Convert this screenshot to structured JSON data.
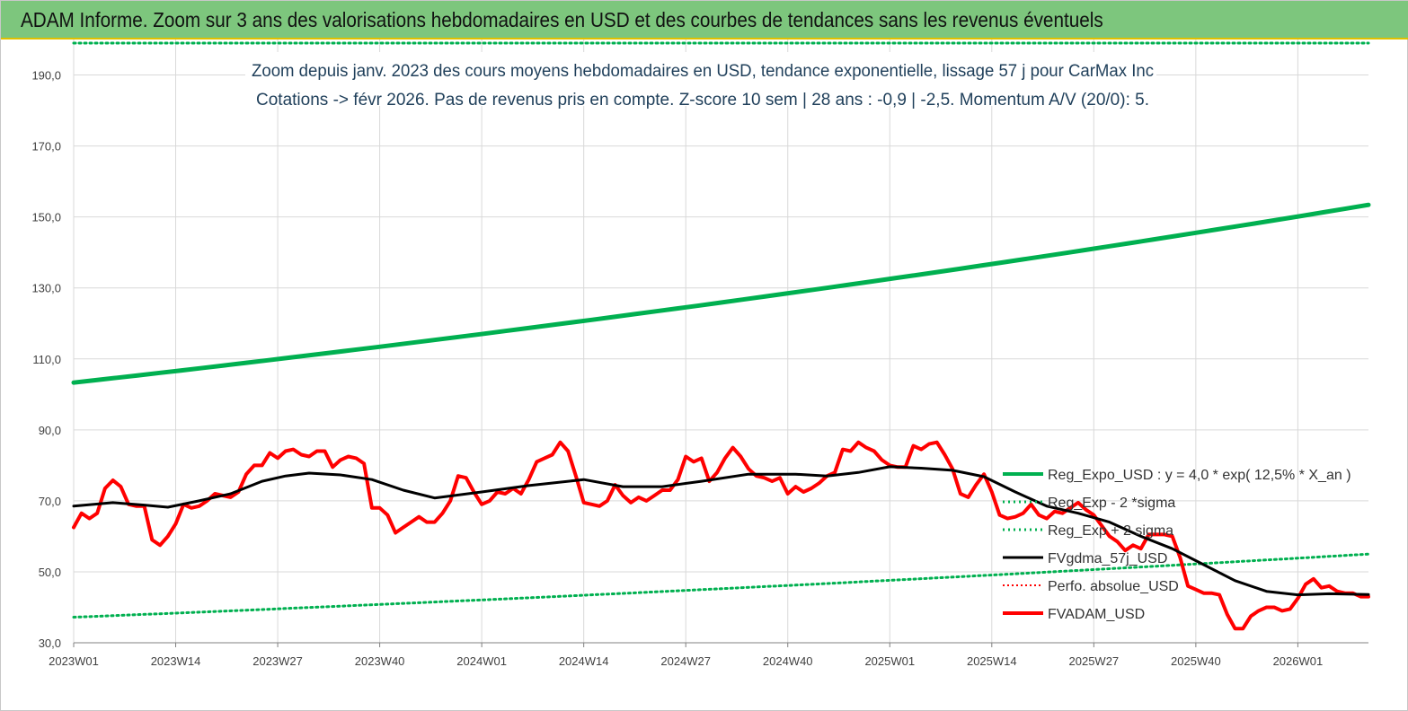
{
  "banner": {
    "title": "ADAM Informe. Zoom sur 3 ans des valorisations hebdomadaires en USD et des courbes de tendances sans les revenus éventuels"
  },
  "colors": {
    "banner_bg": "#7dc67d",
    "reg_expo": "#00b050",
    "reg_band": "#00b050",
    "fvgdma": "#000000",
    "perfo": "#ff0000",
    "fvadam": "#ff0000",
    "grid": "#d9d9d9"
  },
  "chart_data": {
    "type": "line",
    "title_line1": "Zoom depuis janv. 2023 des cours moyens hebdomadaires en USD, tendance exponentielle, lissage 57 j pour CarMax Inc",
    "title_line2": "Cotations -> févr 2026.  Pas de revenus pris en compte. Z-score 10 sem | 28 ans : -0,9 | -2,5. Momentum A/V (20/0): 5.",
    "xlabel": "",
    "ylabel": "",
    "ylim": [
      30,
      200
    ],
    "yticks": [
      "30,0",
      "50,0",
      "70,0",
      "90,0",
      "110,0",
      "130,0",
      "150,0",
      "170,0",
      "190,0"
    ],
    "x_ticks": [
      "2023W01",
      "2023W14",
      "2023W27",
      "2023W40",
      "2024W01",
      "2024W14",
      "2024W27",
      "2024W40",
      "2025W01",
      "2025W14",
      "2025W27",
      "2025W40",
      "2026W01"
    ],
    "x_range_weeks": [
      0,
      165
    ],
    "grid": true,
    "legend_position": "right",
    "series": [
      {
        "name": "Reg_Expo_USD : y = 4,0 * exp( 12,5% *  X_an )",
        "style": "solid-thick",
        "points": [
          [
            0,
            103.3
          ],
          [
            165,
            153.4
          ]
        ]
      },
      {
        "name": "Reg_Exp - 2 *sigma",
        "style": "dotted",
        "points": [
          [
            0,
            37.2
          ],
          [
            165,
            55.0
          ]
        ]
      },
      {
        "name": "Reg_Exp + 2 sigma",
        "style": "dotted",
        "points": [
          [
            0,
            199.0
          ],
          [
            165,
            199.0
          ]
        ]
      },
      {
        "name": "FVgdma_57j_USD",
        "style": "solid",
        "points": [
          [
            0,
            68.5
          ],
          [
            5,
            69.5
          ],
          [
            9,
            68.8
          ],
          [
            12,
            68.2
          ],
          [
            16,
            70.0
          ],
          [
            20,
            72.0
          ],
          [
            24,
            75.5
          ],
          [
            27,
            77.0
          ],
          [
            30,
            77.8
          ],
          [
            34,
            77.3
          ],
          [
            38,
            76.0
          ],
          [
            42,
            73.0
          ],
          [
            46,
            70.8
          ],
          [
            52,
            72.5
          ],
          [
            58,
            74.3
          ],
          [
            65,
            76.0
          ],
          [
            70,
            74.0
          ],
          [
            75,
            74.0
          ],
          [
            80,
            75.5
          ],
          [
            86,
            77.5
          ],
          [
            92,
            77.5
          ],
          [
            96,
            77.0
          ],
          [
            100,
            78.0
          ],
          [
            104,
            79.6
          ],
          [
            108,
            79.2
          ],
          [
            112,
            78.6
          ],
          [
            116,
            76.8
          ],
          [
            120,
            72.5
          ],
          [
            124,
            68.5
          ],
          [
            128,
            66.5
          ],
          [
            132,
            64.0
          ],
          [
            136,
            60.0
          ],
          [
            140,
            56.5
          ],
          [
            144,
            52.0
          ],
          [
            148,
            47.5
          ],
          [
            152,
            44.5
          ],
          [
            156,
            43.5
          ],
          [
            160,
            43.8
          ],
          [
            165,
            43.6
          ]
        ]
      },
      {
        "name": "Perfo. absolue_USD",
        "style": "dotted",
        "points": []
      },
      {
        "name": "FVADAM_USD",
        "style": "solid",
        "points": [
          [
            0,
            62.5
          ],
          [
            1,
            66.5
          ],
          [
            2,
            65.0
          ],
          [
            3,
            66.5
          ],
          [
            4,
            73.5
          ],
          [
            5,
            75.8
          ],
          [
            6,
            74.0
          ],
          [
            7,
            69.0
          ],
          [
            8,
            68.5
          ],
          [
            9,
            68.5
          ],
          [
            10,
            59.0
          ],
          [
            11,
            57.5
          ],
          [
            12,
            60.0
          ],
          [
            13,
            63.5
          ],
          [
            14,
            69.0
          ],
          [
            15,
            68.0
          ],
          [
            16,
            68.5
          ],
          [
            17,
            70.0
          ],
          [
            18,
            72.0
          ],
          [
            19,
            71.5
          ],
          [
            20,
            71.0
          ],
          [
            21,
            72.5
          ],
          [
            22,
            77.5
          ],
          [
            23,
            80.0
          ],
          [
            24,
            80.0
          ],
          [
            25,
            83.5
          ],
          [
            26,
            82.0
          ],
          [
            27,
            84.0
          ],
          [
            28,
            84.5
          ],
          [
            29,
            83.0
          ],
          [
            30,
            82.5
          ],
          [
            31,
            84.0
          ],
          [
            32,
            84.0
          ],
          [
            33,
            79.5
          ],
          [
            34,
            81.5
          ],
          [
            35,
            82.5
          ],
          [
            36,
            82.0
          ],
          [
            37,
            80.5
          ],
          [
            38,
            68.0
          ],
          [
            39,
            68.0
          ],
          [
            40,
            66.0
          ],
          [
            41,
            61.0
          ],
          [
            42,
            62.5
          ],
          [
            43,
            64.0
          ],
          [
            44,
            65.5
          ],
          [
            45,
            64.0
          ],
          [
            46,
            64.0
          ],
          [
            47,
            66.5
          ],
          [
            48,
            70.0
          ],
          [
            49,
            77.0
          ],
          [
            50,
            76.5
          ],
          [
            51,
            72.5
          ],
          [
            52,
            69.0
          ],
          [
            53,
            70.0
          ],
          [
            54,
            72.5
          ],
          [
            55,
            72.0
          ],
          [
            56,
            73.5
          ],
          [
            57,
            72.0
          ],
          [
            58,
            76.0
          ],
          [
            59,
            81.0
          ],
          [
            60,
            82.0
          ],
          [
            61,
            83.0
          ],
          [
            62,
            86.5
          ],
          [
            63,
            84.0
          ],
          [
            64,
            77.0
          ],
          [
            65,
            69.5
          ],
          [
            66,
            69.0
          ],
          [
            67,
            68.5
          ],
          [
            68,
            70.0
          ],
          [
            69,
            74.5
          ],
          [
            70,
            71.5
          ],
          [
            71,
            69.5
          ],
          [
            72,
            71.0
          ],
          [
            73,
            70.0
          ],
          [
            74,
            71.5
          ],
          [
            75,
            73.0
          ],
          [
            76,
            73.0
          ],
          [
            77,
            76.0
          ],
          [
            78,
            82.5
          ],
          [
            79,
            81.0
          ],
          [
            80,
            82.0
          ],
          [
            81,
            75.5
          ],
          [
            82,
            78.0
          ],
          [
            83,
            82.0
          ],
          [
            84,
            85.0
          ],
          [
            85,
            82.5
          ],
          [
            86,
            79.0
          ],
          [
            87,
            77.0
          ],
          [
            88,
            76.5
          ],
          [
            89,
            75.5
          ],
          [
            90,
            76.5
          ],
          [
            91,
            72.0
          ],
          [
            92,
            74.0
          ],
          [
            93,
            72.5
          ],
          [
            94,
            73.5
          ],
          [
            95,
            75.0
          ],
          [
            96,
            77.0
          ],
          [
            97,
            78.0
          ],
          [
            98,
            84.5
          ],
          [
            99,
            84.0
          ],
          [
            100,
            86.5
          ],
          [
            101,
            85.0
          ],
          [
            102,
            84.0
          ],
          [
            103,
            81.5
          ],
          [
            104,
            80.0
          ],
          [
            105,
            79.5
          ],
          [
            106,
            79.5
          ],
          [
            107,
            85.5
          ],
          [
            108,
            84.5
          ],
          [
            109,
            86.0
          ],
          [
            110,
            86.5
          ],
          [
            111,
            83.0
          ],
          [
            112,
            79.0
          ],
          [
            113,
            72.0
          ],
          [
            114,
            71.0
          ],
          [
            115,
            74.5
          ],
          [
            116,
            77.5
          ],
          [
            117,
            72.5
          ],
          [
            118,
            66.0
          ],
          [
            119,
            65.0
          ],
          [
            120,
            65.5
          ],
          [
            121,
            66.5
          ],
          [
            122,
            69.0
          ],
          [
            123,
            66.0
          ],
          [
            124,
            65.0
          ],
          [
            125,
            67.0
          ],
          [
            126,
            66.5
          ],
          [
            127,
            68.0
          ],
          [
            128,
            69.5
          ],
          [
            129,
            67.5
          ],
          [
            130,
            66.0
          ],
          [
            131,
            63.0
          ],
          [
            132,
            60.0
          ],
          [
            133,
            58.5
          ],
          [
            134,
            56.0
          ],
          [
            135,
            57.5
          ],
          [
            136,
            56.5
          ],
          [
            137,
            60.5
          ],
          [
            138,
            60.5
          ],
          [
            139,
            60.5
          ],
          [
            140,
            60.0
          ],
          [
            141,
            54.0
          ],
          [
            142,
            46.0
          ],
          [
            143,
            45.0
          ],
          [
            144,
            44.0
          ],
          [
            145,
            44.0
          ],
          [
            146,
            43.5
          ],
          [
            147,
            38.0
          ],
          [
            148,
            34.0
          ],
          [
            149,
            34.0
          ],
          [
            150,
            37.5
          ],
          [
            151,
            39.0
          ],
          [
            152,
            40.0
          ],
          [
            153,
            40.0
          ],
          [
            154,
            39.0
          ],
          [
            155,
            39.5
          ],
          [
            156,
            42.5
          ],
          [
            157,
            46.5
          ],
          [
            158,
            48.0
          ],
          [
            159,
            45.5
          ],
          [
            160,
            46.0
          ],
          [
            161,
            44.5
          ],
          [
            162,
            44.0
          ],
          [
            163,
            44.0
          ],
          [
            164,
            43.0
          ],
          [
            165,
            43.0
          ]
        ]
      }
    ]
  }
}
